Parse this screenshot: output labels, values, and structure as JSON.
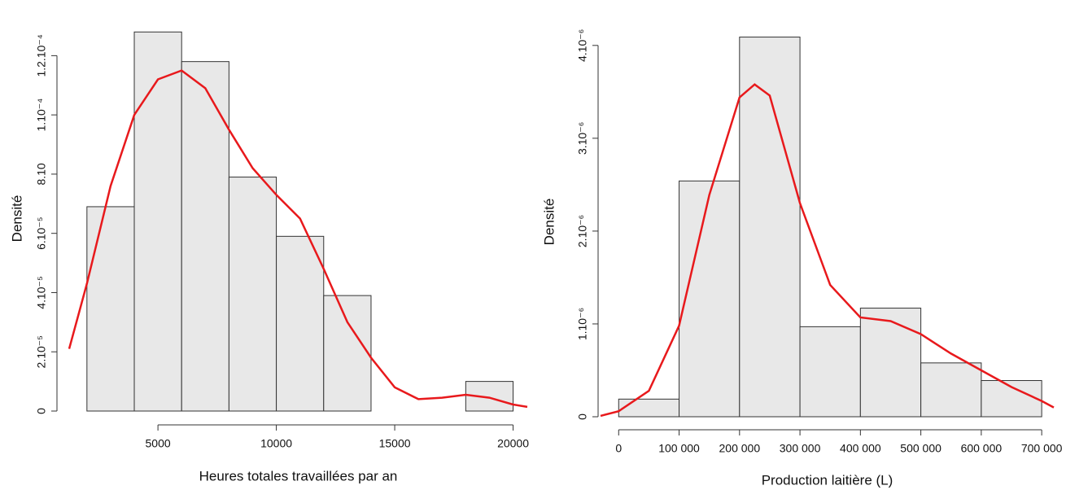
{
  "chart_data": [
    {
      "type": "histogram",
      "x_label": "Heures totales travaillées par an",
      "y_label": "Densité",
      "bins": [
        2000,
        4000,
        6000,
        8000,
        10000,
        12000,
        14000,
        16000,
        18000,
        20000
      ],
      "values": [
        6.9e-05,
        0.000128,
        0.000118,
        7.9e-05,
        5.9e-05,
        3.9e-05,
        0,
        0,
        1e-05
      ],
      "color": "#e8e8e8",
      "curve": {
        "color": "#e8191c",
        "x": [
          1250,
          2000,
          3000,
          4000,
          5000,
          6000,
          7000,
          8000,
          9000,
          10000,
          11000,
          12000,
          13000,
          14000,
          15000,
          16000,
          17000,
          18000,
          19000,
          20000,
          20600
        ],
        "values": [
          2.1e-05,
          4.3e-05,
          7.6e-05,
          0.0001,
          0.000112,
          0.000115,
          0.000109,
          9.5e-05,
          8.2e-05,
          7.3e-05,
          6.5e-05,
          4.8e-05,
          3e-05,
          1.8e-05,
          8e-06,
          4e-06,
          4.5e-06,
          5.5e-06,
          4.5e-06,
          2.2e-06,
          1.4e-06
        ]
      },
      "xlim": [
        1250,
        20600
      ],
      "ylim": [
        0,
        0.00013
      ],
      "xticks": [
        5000,
        10000,
        15000,
        20000
      ],
      "yticks": [
        0,
        {
          "value": 2e-05,
          "label": "2.10⁻⁵"
        },
        {
          "value": 4e-05,
          "label": "4.10⁻⁵"
        },
        {
          "value": 6e-05,
          "label": "6.10⁻⁵"
        },
        {
          "value": 8e-05,
          "label": "8.10"
        },
        {
          "value": 0.0001,
          "label": "1.10⁻⁴"
        },
        {
          "value": 0.00012,
          "label": "1.2.10⁻⁴"
        }
      ]
    },
    {
      "type": "histogram",
      "x_label": "Production laitière (L)",
      "y_label": "Densité",
      "bins": [
        0,
        100000,
        200000,
        300000,
        400000,
        500000,
        600000,
        700000
      ],
      "values": [
        1.9e-07,
        2.54e-06,
        4.09e-06,
        9.7e-07,
        1.17e-06,
        5.8e-07,
        3.9e-07
      ],
      "color": "#e8e8e8",
      "curve": {
        "color": "#e8191c",
        "x": [
          -30000,
          0,
          50000,
          100000,
          150000,
          200000,
          225000,
          250000,
          300000,
          350000,
          400000,
          450000,
          500000,
          550000,
          600000,
          650000,
          700000,
          720000
        ],
        "values": [
          1e-08,
          6e-08,
          2.8e-07,
          9.8e-07,
          2.39e-06,
          3.44e-06,
          3.58e-06,
          3.46e-06,
          2.3e-06,
          1.42e-06,
          1.07e-06,
          1.03e-06,
          8.9e-07,
          6.8e-07,
          5e-07,
          3.2e-07,
          1.7e-07,
          1e-07
        ]
      },
      "xlim": [
        -30000,
        720000
      ],
      "ylim": [
        0,
        4.2e-06
      ],
      "xticks": [
        0,
        {
          "value": 100000,
          "label": "100 000"
        },
        {
          "value": 200000,
          "label": "200 000"
        },
        {
          "value": 300000,
          "label": "300 000"
        },
        {
          "value": 400000,
          "label": "400 000"
        },
        {
          "value": 500000,
          "label": "500 000"
        },
        {
          "value": 600000,
          "label": "600 000"
        },
        {
          "value": 700000,
          "label": "700 000"
        }
      ],
      "yticks": [
        0,
        {
          "value": 1e-06,
          "label": "1.10⁻⁶"
        },
        {
          "value": 2e-06,
          "label": "2.10⁻⁶"
        },
        {
          "value": 3e-06,
          "label": "3.10⁻⁶"
        },
        {
          "value": 4e-06,
          "label": "4.10⁻⁶"
        }
      ]
    }
  ]
}
